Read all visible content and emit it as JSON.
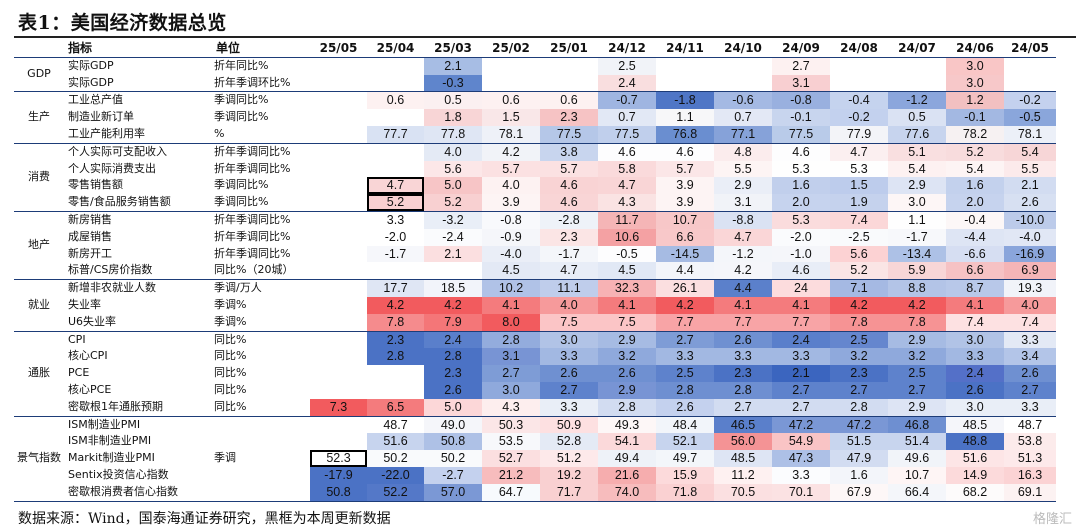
{
  "title": "表1：美国经济数据总览",
  "header": {
    "indicator": "指标",
    "unit": "单位",
    "columns": [
      "25/05",
      "25/04",
      "25/03",
      "25/02",
      "25/01",
      "24/12",
      "24/11",
      "24/10",
      "24/09",
      "24/08",
      "24/07",
      "24/06",
      "24/05"
    ]
  },
  "groups": [
    {
      "category": "GDP",
      "rows": [
        {
          "name": "实际GDP",
          "unit": "折年同比%",
          "values": [
            "",
            "",
            "2.1",
            "",
            "",
            "2.5",
            "",
            "",
            "2.7",
            "",
            "",
            "3.0",
            ""
          ]
        },
        {
          "name": "实际GDP",
          "unit": "折年季调环比%",
          "values": [
            "",
            "",
            "-0.3",
            "",
            "",
            "2.4",
            "",
            "",
            "3.1",
            "",
            "",
            "3.0",
            ""
          ]
        }
      ]
    },
    {
      "category": "生产",
      "rows": [
        {
          "name": "工业总产值",
          "unit": "季调同比%",
          "values": [
            "",
            "0.6",
            "0.5",
            "0.6",
            "0.6",
            "-0.7",
            "-1.8",
            "-0.6",
            "-0.8",
            "-0.4",
            "-1.2",
            "1.2",
            "-0.2"
          ]
        },
        {
          "name": "制造业新订单",
          "unit": "季调同比%",
          "values": [
            "",
            "",
            "1.8",
            "1.5",
            "2.3",
            "0.7",
            "1.1",
            "0.7",
            "-0.1",
            "-0.2",
            "0.5",
            "-0.1",
            "-0.5"
          ]
        },
        {
          "name": "工业产能利用率",
          "unit": "%",
          "values": [
            "",
            "77.7",
            "77.8",
            "78.1",
            "77.5",
            "77.5",
            "76.8",
            "77.1",
            "77.5",
            "77.9",
            "77.6",
            "78.2",
            "78.1"
          ]
        }
      ]
    },
    {
      "category": "消费",
      "rows": [
        {
          "name": "个人实际可支配收入",
          "unit": "折年季调同比%",
          "values": [
            "",
            "",
            "4.0",
            "4.2",
            "3.8",
            "4.6",
            "4.6",
            "4.8",
            "4.6",
            "4.7",
            "5.1",
            "5.2",
            "5.4"
          ]
        },
        {
          "name": "个人实际消费支出",
          "unit": "折年季调同比%",
          "values": [
            "",
            "",
            "5.6",
            "5.7",
            "5.7",
            "5.8",
            "5.7",
            "5.5",
            "5.3",
            "5.3",
            "5.4",
            "5.4",
            "5.5"
          ]
        },
        {
          "name": "零售销售额",
          "unit": "季调同比%",
          "values": [
            "",
            "4.7",
            "5.0",
            "4.0",
            "4.6",
            "4.7",
            "3.9",
            "2.9",
            "1.6",
            "1.5",
            "2.9",
            "1.6",
            "2.1"
          ]
        },
        {
          "name": "零售/食品服务销售额",
          "unit": "季调同比%",
          "values": [
            "",
            "5.2",
            "5.2",
            "3.9",
            "4.6",
            "4.3",
            "3.9",
            "3.1",
            "2.0",
            "1.9",
            "3.0",
            "2.0",
            "2.6"
          ]
        }
      ]
    },
    {
      "category": "地产",
      "rows": [
        {
          "name": "新房销售",
          "unit": "折年季调同比%",
          "values": [
            "",
            "3.3",
            "-3.2",
            "-0.8",
            "-2.8",
            "11.7",
            "10.7",
            "-8.8",
            "5.3",
            "7.4",
            "1.1",
            "-0.4",
            "-10.0"
          ]
        },
        {
          "name": "成屋销售",
          "unit": "折年季调同比%",
          "values": [
            "",
            "-2.0",
            "-2.4",
            "-0.9",
            "2.3",
            "10.6",
            "6.6",
            "4.7",
            "-2.0",
            "-2.5",
            "-1.7",
            "-4.4",
            "-4.0"
          ]
        },
        {
          "name": "新房开工",
          "unit": "折年季调同比%",
          "values": [
            "",
            "-1.7",
            "2.1",
            "-4.0",
            "-1.7",
            "-0.5",
            "-14.5",
            "-1.2",
            "-1.0",
            "5.6",
            "-13.4",
            "-6.6",
            "-16.9"
          ]
        },
        {
          "name": "标普/CS房价指数",
          "unit": "同比%（20城）",
          "values": [
            "",
            "",
            "",
            "4.5",
            "4.7",
            "4.5",
            "4.4",
            "4.2",
            "4.6",
            "5.2",
            "5.9",
            "6.6",
            "6.9"
          ]
        }
      ]
    },
    {
      "category": "就业",
      "rows": [
        {
          "name": "新增非农就业人数",
          "unit": "季调/万人",
          "values": [
            "",
            "17.7",
            "18.5",
            "10.2",
            "11.1",
            "32.3",
            "26.1",
            "4.4",
            "24",
            "7.1",
            "8.8",
            "8.7",
            "19.3"
          ]
        },
        {
          "name": "失业率",
          "unit": "季调%",
          "values": [
            "",
            "4.2",
            "4.2",
            "4.1",
            "4.0",
            "4.1",
            "4.2",
            "4.1",
            "4.1",
            "4.2",
            "4.2",
            "4.1",
            "4.0"
          ]
        },
        {
          "name": "U6失业率",
          "unit": "季调%",
          "values": [
            "",
            "7.8",
            "7.9",
            "8.0",
            "7.5",
            "7.5",
            "7.7",
            "7.7",
            "7.7",
            "7.8",
            "7.8",
            "7.4",
            "7.4"
          ]
        }
      ]
    },
    {
      "category": "通胀",
      "rows": [
        {
          "name": "CPI",
          "unit": "同比%",
          "values": [
            "",
            "2.3",
            "2.4",
            "2.8",
            "3.0",
            "2.9",
            "2.7",
            "2.6",
            "2.4",
            "2.5",
            "2.9",
            "3.0",
            "3.3"
          ]
        },
        {
          "name": "核心CPI",
          "unit": "同比%",
          "values": [
            "",
            "2.8",
            "2.8",
            "3.1",
            "3.3",
            "3.2",
            "3.3",
            "3.3",
            "3.3",
            "3.2",
            "3.2",
            "3.3",
            "3.4"
          ]
        },
        {
          "name": "PCE",
          "unit": "同比%",
          "values": [
            "",
            "",
            "2.3",
            "2.7",
            "2.6",
            "2.6",
            "2.5",
            "2.3",
            "2.1",
            "2.3",
            "2.5",
            "2.4",
            "2.6"
          ]
        },
        {
          "name": "核心PCE",
          "unit": "同比%",
          "values": [
            "",
            "",
            "2.6",
            "3.0",
            "2.7",
            "2.9",
            "2.8",
            "2.8",
            "2.7",
            "2.7",
            "2.7",
            "2.6",
            "2.7"
          ]
        },
        {
          "name": "密歇根1年通胀预期",
          "unit": "同比%",
          "values": [
            "7.3",
            "6.5",
            "5.0",
            "4.3",
            "3.3",
            "2.8",
            "2.6",
            "2.7",
            "2.7",
            "2.8",
            "2.9",
            "3.0",
            "3.3"
          ]
        }
      ]
    },
    {
      "category": "景气指数",
      "rows": [
        {
          "name": "ISM制造业PMI",
          "unit": "",
          "values": [
            "",
            "48.7",
            "49.0",
            "50.3",
            "50.9",
            "49.3",
            "48.4",
            "46.5",
            "47.2",
            "47.2",
            "46.8",
            "48.5",
            "48.7"
          ]
        },
        {
          "name": "ISM非制造业PMI",
          "unit": "",
          "values": [
            "",
            "51.6",
            "50.8",
            "53.5",
            "52.8",
            "54.1",
            "52.1",
            "56.0",
            "54.9",
            "51.5",
            "51.4",
            "48.8",
            "53.8"
          ]
        },
        {
          "name": "Markit制造业PMI",
          "unit": "季调",
          "values": [
            "52.3",
            "50.2",
            "50.2",
            "52.7",
            "51.2",
            "49.4",
            "49.7",
            "48.5",
            "47.3",
            "47.9",
            "49.6",
            "51.6",
            "51.3"
          ]
        },
        {
          "name": "Sentix投资信心指数",
          "unit": "",
          "values": [
            "-17.9",
            "-22.0",
            "-2.7",
            "21.2",
            "19.2",
            "21.6",
            "15.9",
            "11.2",
            "3.3",
            "1.6",
            "10.7",
            "14.9",
            "16.3"
          ]
        },
        {
          "name": "密歇根消费者信心指数",
          "unit": "",
          "values": [
            "50.8",
            "52.2",
            "57.0",
            "64.7",
            "71.7",
            "74.0",
            "71.8",
            "70.5",
            "70.1",
            "67.9",
            "66.4",
            "68.2",
            "69.1"
          ]
        }
      ]
    }
  ],
  "colors": {
    "rows": [
      [
        "",
        "",
        "#a7bde4",
        "",
        "",
        "#f1f3f8",
        "",
        "",
        "#fdf1f1",
        "",
        "",
        "#f9c6c6",
        ""
      ],
      [
        "",
        "",
        "#5f85cc",
        "",
        "",
        "#f9dedf",
        "",
        "",
        "#f8cfd1",
        "",
        "",
        "#f7c8c9",
        ""
      ],
      [
        "",
        "#fdf1f1",
        "#fbf0f1",
        "#fdf1f1",
        "#fdf1f1",
        "#9fb5e1",
        "#4f76c6",
        "#a4b9e3",
        "#99b0df",
        "#c5d3ee",
        "#8ba6dc",
        "#f2c0c1",
        "#c4d1ee"
      ],
      [
        "",
        "",
        "#f8d5d6",
        "#f9e7e8",
        "#f6c3c4",
        "#e2e8f5",
        "#f7f7f9",
        "#e3e8f5",
        "#c8d5ee",
        "#c3d1ee",
        "#dae2f3",
        "#a3b8e2",
        "#8aa6db"
      ],
      [
        "",
        "#d9e2f3",
        "#dfe6f4",
        "#eef1f8",
        "#b5c7e8",
        "#c0cfec",
        "#6a8ed0",
        "#86a2d9",
        "#b9cbe9",
        "#f3f4f8",
        "#c7d4ee",
        "#f6f1f2",
        "#ecf0f8"
      ],
      [
        "",
        "",
        "#e4eaf5",
        "#f1f3f8",
        "#c8d5ee",
        "#fdfdfe",
        "#fdfdfe",
        "#fbeced",
        "#fdfdfe",
        "#fbeff0",
        "#f9dfe0",
        "#f8dcdd",
        "#f7d6d7"
      ],
      [
        "",
        "",
        "#fce7e8",
        "#fbe1e2",
        "#fbe1e2",
        "#fadadb",
        "#fbe6e7",
        "#fdf4f4",
        "#fefefe",
        "#fefefe",
        "#fdf1f1",
        "#fdf4f4",
        "#fceaeb"
      ],
      [
        "",
        "#f9d5d6",
        "#f7c5c6",
        "#fdf2f2",
        "#f9d3d4",
        "#f9d5d6",
        "#fdf4f4",
        "#eaeef7",
        "#c1cfec",
        "#bdccec",
        "#dde4f4",
        "#c3d1ed",
        "#d2dcf1"
      ],
      [
        "",
        "#f8d0d1",
        "#f8d0d1",
        "#fdf4f4",
        "#f9d5d6",
        "#fae3e3",
        "#fdf4f4",
        "#f1f3f8",
        "#c6d3ee",
        "#c5d2ed",
        "#fdf6f6",
        "#c6d3ee",
        "#d7e0f2"
      ],
      [
        "",
        "#fff",
        "#e9eef7",
        "#f8f9fc",
        "#eef2f8",
        "#f5b5b6",
        "#f7c7c8",
        "#dae2f3",
        "#fadcdd",
        "#fbd7d8",
        "#fefefe",
        "#fcf7f7",
        "#bccbea"
      ],
      [
        "",
        "#fff",
        "#fafbfd",
        "#f5f6fa",
        "#fbe5e5",
        "#f4a1a3",
        "#f8c8c9",
        "#fad6d7",
        "#fafbfd",
        "#f9fafc",
        "#f7f8fb",
        "#dee5f4",
        "#e1e7f5"
      ],
      [
        "",
        "#f6f7fb",
        "#fbdfe0",
        "#eaeef7",
        "#f4f6fa",
        "#fdfdfe",
        "#a6bbe3",
        "#f4f6fa",
        "#f5f6fa",
        "#fcd2d3",
        "#adc1e6",
        "#d6deF2",
        "#8aa5db"
      ],
      [
        "",
        "",
        "",
        "#e3e9f5",
        "#e8edf7",
        "#e1e8f5",
        "#f3f5fa",
        "#f5f6fa",
        "#e8edf7",
        "#fae5e5",
        "#f8d6d7",
        "#f6c2c4",
        "#f5b5b7"
      ],
      [
        "",
        "#dfe6f4",
        "#f2f4fa",
        "#b0c2e7",
        "#bfcdeb",
        "#f7b2b4",
        "#fbdfe0",
        "#5b80cb",
        "#fcdcdd",
        "#a5b9e3",
        "#b3c4e7",
        "#b8c8e9",
        "#f1f3f9"
      ],
      [
        "",
        "#f25b5e",
        "#f25b5e",
        "#f47b7d",
        "#f69a9b",
        "#f47b7d",
        "#f25b5e",
        "#f47b7d",
        "#f47b7d",
        "#f25b5e",
        "#f25b5e",
        "#f47b7d",
        "#f69a9b"
      ],
      [
        "",
        "#f58b8d",
        "#f47678",
        "#f25b5e",
        "#fbc5c6",
        "#fbc5c6",
        "#f8a4a6",
        "#f8a4a6",
        "#f8a4a6",
        "#f69394",
        "#f69394",
        "#fde1e2",
        "#fde1e2"
      ],
      [
        "",
        "#4b72c5",
        "#5a7fcb",
        "#93acdd",
        "#b1c3e6",
        "#a6bbe3",
        "#7e9cd6",
        "#6f90d1",
        "#5a7fcb",
        "#6586ce",
        "#a6bbe3",
        "#b1c3e6",
        "#e3e9f5"
      ],
      [
        "",
        "#4b72c5",
        "#4b72c5",
        "#7894d4",
        "#a2b8e2",
        "#8fa9dc",
        "#a2b8e2",
        "#a2b8e2",
        "#a2b8e2",
        "#8fa9dc",
        "#8fa9dc",
        "#a2b8e2",
        "#b3c5e8"
      ],
      [
        "",
        "",
        "#4b72c5",
        "#7e9cd6",
        "#6f90d1",
        "#6f90d1",
        "#5e82cc",
        "#4b72c5",
        "#3b65bf",
        "#4b72c5",
        "#5e82cc",
        "#5470c8",
        "#6f90d1"
      ],
      [
        "",
        "",
        "#4b72c5",
        "#8fa9dc",
        "#5e82cc",
        "#7894d4",
        "#6e8fd1",
        "#6e8fd1",
        "#5e82cc",
        "#5e82cc",
        "#5e82cc",
        "#4b72c5",
        "#5e82cc"
      ],
      [
        "#f25b5e",
        "#f47b7d",
        "#fcd7d8",
        "#fdeeee",
        "#e9eef7",
        "#d2dcf1",
        "#c4d1ee",
        "#d2dcf1",
        "#d2dcf1",
        "#d2dcf1",
        "#dde4f4",
        "#e9eef7",
        "#e9eef7"
      ],
      [
        "",
        "#fff",
        "#f5f6fa",
        "#fbe6e7",
        "#fde0e1",
        "#fdf7f7",
        "#f2f5fa",
        "#5a7fcb",
        "#7a97d5",
        "#7a97d5",
        "#6e8fd1",
        "#f5f6fa",
        "#fff"
      ],
      [
        "",
        "#c7d4ee",
        "#aec1e6",
        "#f7f8fb",
        "#e4eaf5",
        "#fbd9da",
        "#c7d4ee",
        "#f49395",
        "#f9c4c5",
        "#c8d5ee",
        "#c8d5ee",
        "#4b72c5",
        "#fcebeb"
      ],
      [
        "#fff",
        "#f9fafc",
        "#f9fafc",
        "#fbdfe0",
        "#fde9ea",
        "#eef2f8",
        "#f3f6fa",
        "#dee5f4",
        "#adc0e6",
        "#d2dcf1",
        "#f1f4f9",
        "#fde5e6",
        "#fde9ea"
      ],
      [
        "#4b72c5",
        "#4b72c5",
        "#c4d1ee",
        "#f7bcbd",
        "#f9d0d1",
        "#f6adae",
        "#fcdadb",
        "#fef1f1",
        "#fbfcfe",
        "#f3f5fa",
        "#fef5f5",
        "#fcdadb",
        "#fbd3d4"
      ],
      [
        "#4b72c5",
        "#5478c8",
        "#7b98d5",
        "#f7fafd",
        "#f9d0d1",
        "#f7bcbd",
        "#fad1d2",
        "#fbe0e1",
        "#fbe2e3",
        "#fdf7f7",
        "#f4f6fa",
        "#fdfbfb",
        "#fcf2f2"
      ]
    ]
  },
  "source": "数据来源：Wind，国泰海通证券研究，黑框为本周更新数据",
  "watermark": "格隆汇"
}
